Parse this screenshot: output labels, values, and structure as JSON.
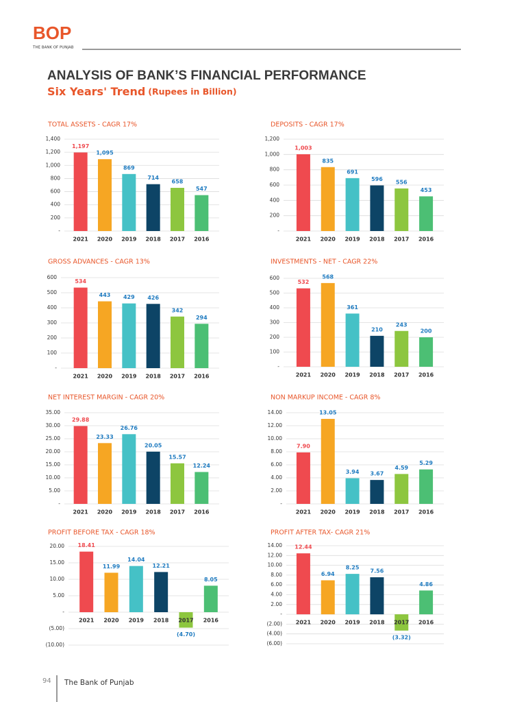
{
  "header": {
    "logo": "BOP",
    "logo_caption": "THE BANK OF PUNJAB",
    "title": "ANALYSIS OF BANK’S FINANCIAL PERFORMANCE",
    "subtitle": "Six Years' Trend",
    "subtitle_note": "(Rupees in Billion)"
  },
  "footer": {
    "page": "94",
    "text": "The Bank of Punjab"
  },
  "chart_data": [
    {
      "type": "bar",
      "title": "TOTAL ASSETS - CAGR 17%",
      "categories": [
        "2021",
        "2020",
        "2019",
        "2018",
        "2017",
        "2016"
      ],
      "values": [
        1197,
        1095,
        869,
        714,
        658,
        547
      ],
      "value_labels": [
        "1,197",
        "1,095",
        "869",
        "714",
        "658",
        "547"
      ],
      "colors": [
        "#ef4a4f",
        "#f6a623",
        "#45c1c6",
        "#0d4466",
        "#8dc63f",
        "#4cbf74"
      ],
      "ylim": [
        0,
        1400
      ],
      "yticks": [
        {
          "value": 0,
          "label": "-"
        },
        200,
        400,
        600,
        800,
        {
          "value": 1000,
          "label": "1,000"
        },
        {
          "value": 1200,
          "label": "1,200"
        },
        {
          "value": 1400,
          "label": "1,400"
        }
      ],
      "grid": true
    },
    {
      "type": "bar",
      "title": "DEPOSITS - CAGR 17%",
      "categories": [
        "2021",
        "2020",
        "2019",
        "2018",
        "2017",
        "2016"
      ],
      "values": [
        1003,
        835,
        691,
        596,
        556,
        453
      ],
      "value_labels": [
        "1,003",
        "835",
        "691",
        "596",
        "556",
        "453"
      ],
      "colors": [
        "#ef4a4f",
        "#f6a623",
        "#45c1c6",
        "#0d4466",
        "#8dc63f",
        "#4cbf74"
      ],
      "ylim": [
        0,
        1200
      ],
      "yticks": [
        {
          "value": 0,
          "label": "-"
        },
        200,
        400,
        600,
        800,
        {
          "value": 1000,
          "label": "1,000"
        },
        {
          "value": 1200,
          "label": "1,200"
        }
      ],
      "grid": true
    },
    {
      "type": "bar",
      "title": "GROSS ADVANCES - CAGR 13%",
      "categories": [
        "2021",
        "2020",
        "2019",
        "2018",
        "2017",
        "2016"
      ],
      "values": [
        534,
        443,
        429,
        426,
        342,
        294
      ],
      "value_labels": [
        "534",
        "443",
        "429",
        "426",
        "342",
        "294"
      ],
      "colors": [
        "#ef4a4f",
        "#f6a623",
        "#45c1c6",
        "#0d4466",
        "#8dc63f",
        "#4cbf74"
      ],
      "ylim": [
        0,
        600
      ],
      "yticks": [
        {
          "value": 0,
          "label": "-"
        },
        100,
        200,
        300,
        400,
        500,
        600
      ],
      "grid": true
    },
    {
      "type": "bar",
      "title": "INVESTMENTS - NET - CAGR 22%",
      "categories": [
        "2021",
        "2020",
        "2019",
        "2018",
        "2017",
        "2016"
      ],
      "values": [
        532,
        568,
        361,
        210,
        243,
        200
      ],
      "value_labels": [
        "532",
        "568",
        "361",
        "210",
        "243",
        "200"
      ],
      "colors": [
        "#ef4a4f",
        "#f6a623",
        "#45c1c6",
        "#0d4466",
        "#8dc63f",
        "#4cbf74"
      ],
      "ylim": [
        0,
        600
      ],
      "yticks": [
        {
          "value": 0,
          "label": "-"
        },
        100,
        200,
        300,
        400,
        500,
        600
      ],
      "grid": true
    },
    {
      "type": "bar",
      "title": "NET INTEREST MARGIN - CAGR 20%",
      "categories": [
        "2021",
        "2020",
        "2019",
        "2018",
        "2017",
        "2016"
      ],
      "values": [
        29.88,
        23.33,
        26.76,
        20.05,
        15.57,
        12.24
      ],
      "value_labels": [
        "29.88",
        "23.33",
        "26.76",
        "20.05",
        "15.57",
        "12.24"
      ],
      "colors": [
        "#ef4a4f",
        "#f6a623",
        "#45c1c6",
        "#0d4466",
        "#8dc63f",
        "#4cbf74"
      ],
      "ylim": [
        0,
        35
      ],
      "yticks": [
        {
          "value": 0,
          "label": "-"
        },
        {
          "value": 5,
          "label": "5.00"
        },
        {
          "value": 10,
          "label": "10.00"
        },
        {
          "value": 15,
          "label": "15.00"
        },
        {
          "value": 20,
          "label": "20.00"
        },
        {
          "value": 25,
          "label": "25.00"
        },
        {
          "value": 30,
          "label": "30.00"
        },
        {
          "value": 35,
          "label": "35.00"
        }
      ],
      "grid": true
    },
    {
      "type": "bar",
      "title": "NON MARKUP INCOME - CAGR 8%",
      "categories": [
        "2021",
        "2020",
        "2019",
        "2018",
        "2017",
        "2016"
      ],
      "values": [
        7.9,
        13.05,
        3.94,
        3.67,
        4.59,
        5.29
      ],
      "value_labels": [
        "7.90",
        "13.05",
        "3.94",
        "3.67",
        "4.59",
        "5.29"
      ],
      "colors": [
        "#ef4a4f",
        "#f6a623",
        "#45c1c6",
        "#0d4466",
        "#8dc63f",
        "#4cbf74"
      ],
      "ylim": [
        0,
        14
      ],
      "yticks": [
        {
          "value": 0,
          "label": "-"
        },
        {
          "value": 2,
          "label": "2.00"
        },
        {
          "value": 4,
          "label": "4.00"
        },
        {
          "value": 6,
          "label": "6.00"
        },
        {
          "value": 8,
          "label": "8.00"
        },
        {
          "value": 10,
          "label": "10.00"
        },
        {
          "value": 12,
          "label": "12.00"
        },
        {
          "value": 14,
          "label": "14.00"
        }
      ],
      "grid": true
    },
    {
      "type": "bar",
      "title": "PROFIT BEFORE TAX - CAGR 18%",
      "categories": [
        "2021",
        "2020",
        "2019",
        "2018",
        "2017",
        "2016"
      ],
      "values": [
        18.41,
        11.99,
        14.04,
        12.21,
        -4.7,
        8.05
      ],
      "value_labels": [
        "18.41",
        "11.99",
        "14.04",
        "12.21",
        "(4.70)",
        "8.05"
      ],
      "colors": [
        "#ef4a4f",
        "#f6a623",
        "#45c1c6",
        "#0d4466",
        "#8dc63f",
        "#4cbf74"
      ],
      "ylim": [
        -10,
        20
      ],
      "yticks": [
        {
          "value": -10,
          "label": "(10.00)"
        },
        {
          "value": -5,
          "label": "(5.00)"
        },
        {
          "value": 0,
          "label": "-"
        },
        {
          "value": 5,
          "label": "5.00"
        },
        {
          "value": 10,
          "label": "10.00"
        },
        {
          "value": 15,
          "label": "15.00"
        },
        {
          "value": 20,
          "label": "20.00"
        }
      ],
      "grid": true
    },
    {
      "type": "bar",
      "title": "PROFIT AFTER TAX- CAGR 21%",
      "categories": [
        "2021",
        "2020",
        "2019",
        "2018",
        "2017",
        "2016"
      ],
      "values": [
        12.44,
        6.94,
        8.25,
        7.56,
        -3.32,
        4.86
      ],
      "value_labels": [
        "12.44",
        "6.94",
        "8.25",
        "7.56",
        "(3.32)",
        "4.86"
      ],
      "colors": [
        "#ef4a4f",
        "#f6a623",
        "#45c1c6",
        "#0d4466",
        "#8dc63f",
        "#4cbf74"
      ],
      "ylim": [
        -6,
        14
      ],
      "yticks": [
        {
          "value": -6,
          "label": "(6.00)"
        },
        {
          "value": -4,
          "label": "(4.00)"
        },
        {
          "value": -2,
          "label": "(2.00)"
        },
        {
          "value": 0,
          "label": "-"
        },
        {
          "value": 2,
          "label": "2.00"
        },
        {
          "value": 4,
          "label": "4.00"
        },
        {
          "value": 6,
          "label": "6.00"
        },
        {
          "value": 8,
          "label": "8.00"
        },
        {
          "value": 10,
          "label": "10.00"
        },
        {
          "value": 12,
          "label": "12.00"
        },
        {
          "value": 14,
          "label": "14.00"
        }
      ],
      "grid": true
    }
  ]
}
